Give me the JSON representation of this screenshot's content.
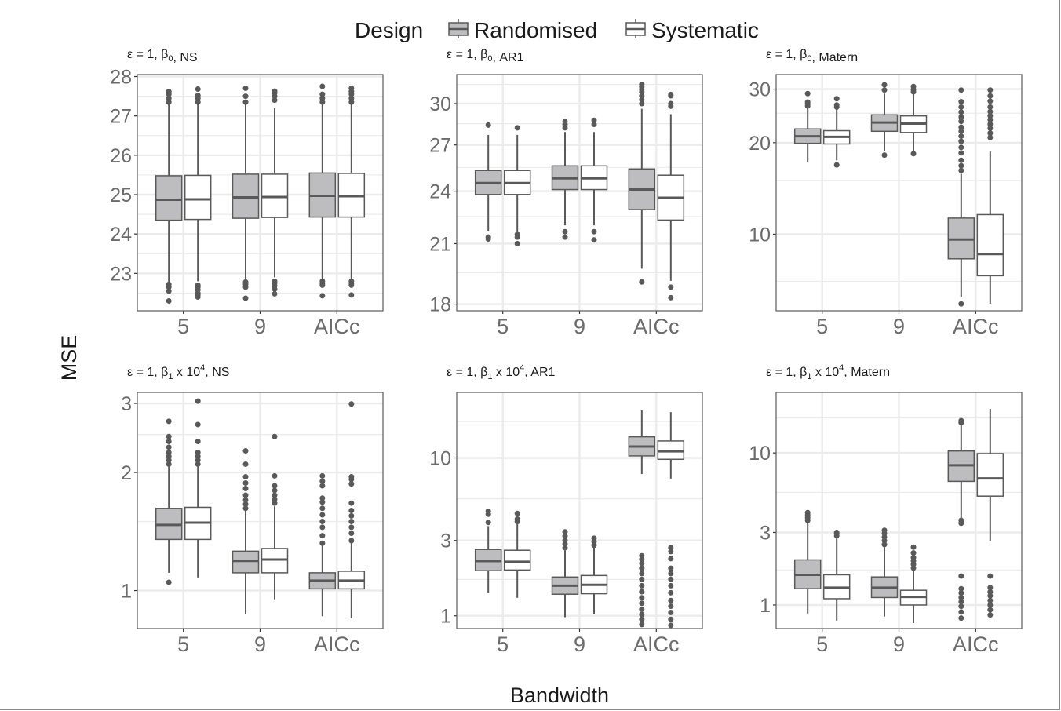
{
  "chart_data": {
    "type": "box",
    "xlabel": "Bandwidth",
    "ylabel": "MSE",
    "legend": {
      "title": "Design",
      "placement": "top",
      "entries": [
        {
          "name": "Randomised",
          "fill": "#bdbdbf"
        },
        {
          "name": "Systematic",
          "fill": "#ffffff"
        }
      ]
    },
    "categories": [
      "5",
      "9",
      "AICc"
    ],
    "colors": {
      "outline": "#595959",
      "median": "#595959",
      "grid": "#ebebeb",
      "panel_border": "#595959",
      "tick_text": "#6b6b6b"
    },
    "panels": [
      {
        "title": {
          "prefix": "ε = 1, β",
          "sub": "0",
          "sup": "",
          "middle": "",
          "suffix": ", NS"
        },
        "scale": "linear",
        "ylim": [
          22.05,
          28.05
        ],
        "yticks": [
          23,
          24,
          25,
          26,
          27,
          28
        ],
        "yminor": [
          22.5,
          23.5,
          24.5,
          25.5,
          26.5,
          27.5
        ],
        "series": [
          {
            "name": "Randomised",
            "boxes": [
              {
                "min": 22.75,
                "q1": 24.35,
                "median": 24.87,
                "q3": 25.48,
                "max": 27.3,
                "outliers": [
                  22.3,
                  22.55,
                  22.65,
                  22.72,
                  27.35,
                  27.45,
                  27.55,
                  27.62
                ]
              },
              {
                "min": 22.8,
                "q1": 24.4,
                "median": 24.93,
                "q3": 25.52,
                "max": 27.3,
                "outliers": [
                  22.37,
                  22.65,
                  22.72,
                  22.78,
                  27.35,
                  27.5,
                  27.7
                ]
              },
              {
                "min": 22.85,
                "q1": 24.43,
                "median": 24.97,
                "q3": 25.55,
                "max": 27.3,
                "outliers": [
                  22.43,
                  22.7,
                  22.75,
                  22.8,
                  27.35,
                  27.45,
                  27.55,
                  27.75
                ]
              }
            ]
          },
          {
            "name": "Systematic",
            "boxes": [
              {
                "min": 22.8,
                "q1": 24.37,
                "median": 24.88,
                "q3": 25.49,
                "max": 27.3,
                "outliers": [
                  22.4,
                  22.45,
                  22.5,
                  22.58,
                  22.65,
                  22.7,
                  27.35,
                  27.45,
                  27.52,
                  27.68
                ]
              },
              {
                "min": 22.9,
                "q1": 24.42,
                "median": 24.94,
                "q3": 25.52,
                "max": 27.2,
                "outliers": [
                  22.48,
                  22.6,
                  22.68,
                  22.75,
                  22.8,
                  27.4,
                  27.5,
                  27.58,
                  27.63
                ]
              },
              {
                "min": 22.85,
                "q1": 24.43,
                "median": 24.96,
                "q3": 25.54,
                "max": 27.3,
                "outliers": [
                  22.45,
                  22.7,
                  22.75,
                  22.8,
                  27.35,
                  27.45,
                  27.55,
                  27.62,
                  27.7
                ]
              }
            ]
          }
        ]
      },
      {
        "title": {
          "prefix": "ε = 1, β",
          "sub": "0",
          "sup": "",
          "middle": "",
          "suffix": ", AR1"
        },
        "scale": "log",
        "ylim": [
          17.7,
          32.3
        ],
        "yticks": [
          18,
          21,
          24,
          27,
          30
        ],
        "yminor": [
          19.5,
          22.5,
          25.5,
          28.5,
          31.5
        ],
        "series": [
          {
            "name": "Randomised",
            "boxes": [
              {
                "min": 21.7,
                "q1": 23.8,
                "median": 24.5,
                "q3": 25.3,
                "max": 27.7,
                "outliers": [
                  21.25,
                  21.35,
                  28.4
                ]
              },
              {
                "min": 22.0,
                "q1": 24.1,
                "median": 24.8,
                "q3": 25.6,
                "max": 27.9,
                "outliers": [
                  21.35,
                  21.65,
                  28.2,
                  28.45,
                  28.65
                ]
              },
              {
                "min": 19.7,
                "q1": 22.9,
                "median": 24.1,
                "q3": 25.4,
                "max": 29.6,
                "outliers": [
                  19.05,
                  30.0,
                  30.3,
                  30.6,
                  30.9,
                  31.1,
                  31.3,
                  31.5
                ]
              }
            ]
          },
          {
            "name": "Systematic",
            "boxes": [
              {
                "min": 21.6,
                "q1": 23.8,
                "median": 24.5,
                "q3": 25.3,
                "max": 27.7,
                "outliers": [
                  21.0,
                  21.35,
                  21.5,
                  28.2
                ]
              },
              {
                "min": 22.0,
                "q1": 24.1,
                "median": 24.8,
                "q3": 25.6,
                "max": 27.9,
                "outliers": [
                  21.2,
                  21.65,
                  28.45,
                  28.75
                ]
              },
              {
                "min": 19.1,
                "q1": 22.3,
                "median": 23.6,
                "q3": 25.0,
                "max": 29.2,
                "outliers": [
                  18.3,
                  18.8,
                  29.8,
                  30.0,
                  30.6,
                  30.7
                ]
              }
            ]
          }
        ]
      },
      {
        "title": {
          "prefix": "ε = 1, β",
          "sub": "0",
          "sup": "",
          "middle": "",
          "suffix": ", Matern"
        },
        "scale": "log",
        "ylim": [
          5.6,
          33.5
        ],
        "yticks": [
          10,
          20,
          30
        ],
        "yminor": [
          7,
          15,
          25
        ],
        "series": [
          {
            "name": "Randomised",
            "boxes": [
              {
                "min": 17.3,
                "q1": 19.9,
                "median": 21.0,
                "q3": 22.2,
                "max": 26.0,
                "outliers": [
                  26.4,
                  26.8,
                  27.2,
                  29.0
                ]
              },
              {
                "min": 18.8,
                "q1": 21.8,
                "median": 23.3,
                "q3": 24.7,
                "max": 29.0,
                "outliers": [
                  18.2,
                  29.8,
                  31.0
                ]
              },
              {
                "min": 6.2,
                "q1": 8.3,
                "median": 9.6,
                "q3": 11.3,
                "max": 15.8,
                "outliers": [
                  5.9,
                  16.2,
                  16.8,
                  17.5,
                  18.5,
                  19.3,
                  20.2,
                  21.0,
                  21.8,
                  22.5,
                  23.5,
                  24.3,
                  25.2,
                  26.2,
                  27.3,
                  29.8
                ]
              }
            ]
          },
          {
            "name": "Systematic",
            "boxes": [
              {
                "min": 17.5,
                "q1": 19.8,
                "median": 20.9,
                "q3": 21.9,
                "max": 25.8,
                "outliers": [
                  16.9,
                  26.2,
                  26.6,
                  27.9
                ]
              },
              {
                "min": 18.8,
                "q1": 21.6,
                "median": 23.1,
                "q3": 24.5,
                "max": 29.0,
                "outliers": [
                  18.4,
                  29.4,
                  29.9,
                  30.6
                ]
              },
              {
                "min": 5.9,
                "q1": 7.3,
                "median": 8.6,
                "q3": 11.6,
                "max": 18.7,
                "outliers": [
                  20.8,
                  21.5,
                  22.3,
                  23.0,
                  23.8,
                  24.5,
                  25.3,
                  26.2,
                  27.4,
                  28.5,
                  29.8
                ]
              }
            ]
          }
        ]
      },
      {
        "title": {
          "prefix": "ε = 1, β",
          "sub": "1",
          "sup": "4",
          "middle": " x 10",
          "suffix": ", NS"
        },
        "scale": "log",
        "ylim": [
          0.8,
          3.2
        ],
        "yticks": [
          1,
          2,
          3
        ],
        "yminor": [
          1.5,
          2.5
        ],
        "series": [
          {
            "name": "Randomised",
            "boxes": [
              {
                "min": 1.11,
                "q1": 1.35,
                "median": 1.47,
                "q3": 1.62,
                "max": 2.07,
                "outliers": [
                  1.05,
                  2.1,
                  2.15,
                  2.2,
                  2.25,
                  2.32,
                  2.4,
                  2.47,
                  2.7
                ]
              },
              {
                "min": 0.87,
                "q1": 1.11,
                "median": 1.19,
                "q3": 1.26,
                "max": 1.6,
                "outliers": [
                  1.62,
                  1.66,
                  1.7,
                  1.75,
                  1.82,
                  1.88,
                  1.95,
                  2.1,
                  2.27
                ]
              },
              {
                "min": 0.86,
                "q1": 1.01,
                "median": 1.06,
                "q3": 1.11,
                "max": 1.3,
                "outliers": [
                  1.32,
                  1.38,
                  1.45,
                  1.5,
                  1.56,
                  1.62,
                  1.68,
                  1.72,
                  1.85,
                  1.9,
                  1.96
                ]
              }
            ]
          },
          {
            "name": "Systematic",
            "boxes": [
              {
                "min": 1.08,
                "q1": 1.35,
                "median": 1.49,
                "q3": 1.63,
                "max": 2.07,
                "outliers": [
                  2.1,
                  2.15,
                  2.2,
                  2.25,
                  2.4,
                  2.65,
                  3.04
                ]
              },
              {
                "min": 0.95,
                "q1": 1.11,
                "median": 1.2,
                "q3": 1.28,
                "max": 1.64,
                "outliers": [
                  1.67,
                  1.71,
                  1.75,
                  1.8,
                  1.85,
                  1.96,
                  2.47
                ]
              },
              {
                "min": 0.85,
                "q1": 1.01,
                "median": 1.06,
                "q3": 1.12,
                "max": 1.32,
                "outliers": [
                  1.34,
                  1.4,
                  1.45,
                  1.5,
                  1.55,
                  1.6,
                  1.67,
                  1.87,
                  1.92,
                  1.95,
                  2.99
                ]
              }
            ]
          }
        ]
      },
      {
        "title": {
          "prefix": "ε = 1, β",
          "sub": "1",
          "sup": "4",
          "middle": " x 10",
          "suffix": ", AR1"
        },
        "scale": "log",
        "ylim": [
          0.83,
          26
        ],
        "yticks": [
          1,
          3,
          10
        ],
        "yminor": [
          1.7,
          5.5,
          17
        ],
        "series": [
          {
            "name": "Randomised",
            "boxes": [
              {
                "min": 1.4,
                "q1": 1.93,
                "median": 2.22,
                "q3": 2.63,
                "max": 3.7,
                "outliers": [
                  3.9,
                  4.4,
                  4.6
                ]
              },
              {
                "min": 0.98,
                "q1": 1.37,
                "median": 1.55,
                "q3": 1.76,
                "max": 2.6,
                "outliers": [
                  2.7,
                  2.85,
                  3.0,
                  3.2,
                  3.4
                ]
              },
              {
                "min": 7.9,
                "q1": 10.3,
                "median": 11.8,
                "q3": 13.6,
                "max": 20.0,
                "outliers": [
                  0.88,
                  0.95,
                  1.02,
                  1.1,
                  1.2,
                  1.3,
                  1.42,
                  1.55,
                  1.7,
                  1.85,
                  2.0,
                  2.15,
                  2.28,
                  2.4
                ]
              }
            ]
          },
          {
            "name": "Systematic",
            "boxes": [
              {
                "min": 1.3,
                "q1": 1.95,
                "median": 2.2,
                "q3": 2.6,
                "max": 3.8,
                "outliers": [
                  3.95,
                  4.1,
                  4.45
                ]
              },
              {
                "min": 1.02,
                "q1": 1.38,
                "median": 1.57,
                "q3": 1.8,
                "max": 2.7,
                "outliers": [
                  2.8,
                  2.95,
                  3.1
                ]
              },
              {
                "min": 7.4,
                "q1": 9.8,
                "median": 11.0,
                "q3": 12.8,
                "max": 19.5,
                "outliers": [
                  0.87,
                  0.95,
                  1.05,
                  1.15,
                  1.25,
                  1.4,
                  1.55,
                  1.7,
                  1.85,
                  2.0,
                  2.3,
                  2.55,
                  2.7
                ]
              }
            ]
          }
        ]
      },
      {
        "title": {
          "prefix": "ε = 1, β",
          "sub": "1",
          "sup": "4",
          "middle": " x 10",
          "suffix": ", Matern"
        },
        "scale": "log",
        "ylim": [
          0.7,
          25
        ],
        "yticks": [
          1,
          3,
          10
        ],
        "yminor": [
          1.7,
          5.5,
          17
        ],
        "series": [
          {
            "name": "Randomised",
            "boxes": [
              {
                "min": 0.88,
                "q1": 1.28,
                "median": 1.58,
                "q3": 1.98,
                "max": 3.5,
                "outliers": [
                  3.6,
                  3.75,
                  3.9,
                  4.05
                ]
              },
              {
                "min": 0.84,
                "q1": 1.12,
                "median": 1.3,
                "q3": 1.53,
                "max": 2.4,
                "outliers": [
                  2.5,
                  2.65,
                  2.8,
                  2.95,
                  3.1
                ]
              },
              {
                "min": 3.7,
                "q1": 6.5,
                "median": 8.3,
                "q3": 10.3,
                "max": 15.2,
                "outliers": [
                  0.82,
                  0.9,
                  0.98,
                  1.05,
                  1.12,
                  1.2,
                  1.28,
                  1.55,
                  3.45,
                  3.6,
                  15.8,
                  16.3
                ]
              }
            ]
          },
          {
            "name": "Systematic",
            "boxes": [
              {
                "min": 0.79,
                "q1": 1.1,
                "median": 1.3,
                "q3": 1.58,
                "max": 2.8,
                "outliers": [
                  2.85,
                  2.95,
                  3.0
                ]
              },
              {
                "min": 0.76,
                "q1": 1.0,
                "median": 1.13,
                "q3": 1.25,
                "max": 1.7,
                "outliers": [
                  1.75,
                  1.85,
                  1.95,
                  2.05,
                  2.2,
                  2.4
                ]
              },
              {
                "min": 2.65,
                "q1": 5.2,
                "median": 6.8,
                "q3": 9.9,
                "max": 19.5,
                "outliers": [
                  0.86,
                  0.93,
                  1.0,
                  1.07,
                  1.15,
                  1.22,
                  1.3,
                  1.55
                ]
              }
            ]
          }
        ]
      }
    ]
  }
}
